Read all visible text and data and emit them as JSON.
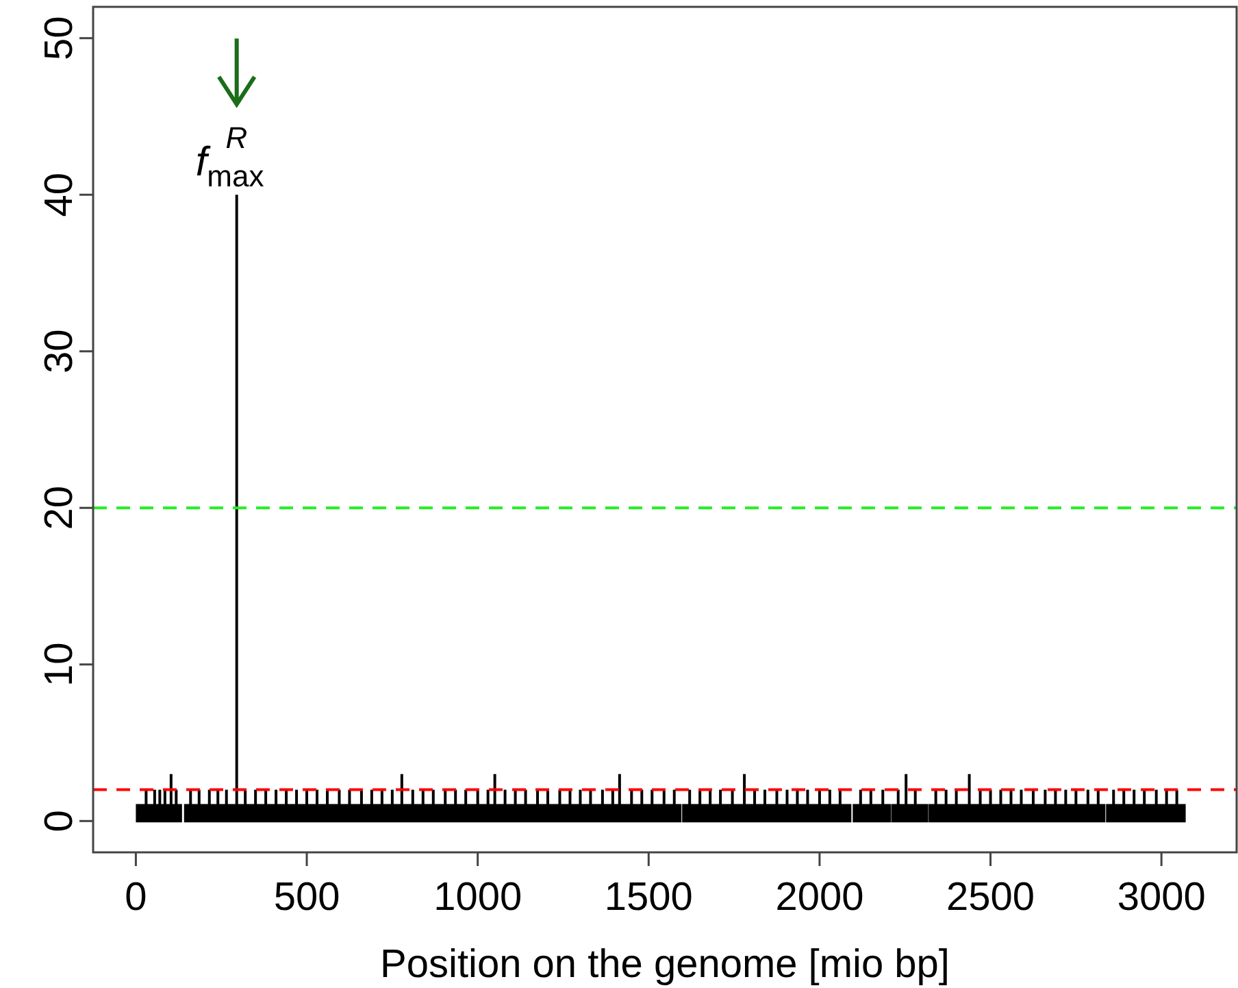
{
  "chart_data": {
    "type": "bar",
    "xlabel": "Position on the genome [mio bp]",
    "xlim": [
      -125,
      3220
    ],
    "xticks": [
      0,
      500,
      1000,
      1500,
      2000,
      2500,
      3000
    ],
    "ylim": [
      -2,
      52
    ],
    "yticks": [
      0,
      10,
      20,
      30,
      40,
      50
    ],
    "grid": false,
    "series": [
      {
        "type": "area",
        "color": "#000000",
        "x": [
          4,
          131,
          null,
          145,
          1592,
          null,
          1602,
          2089,
          null,
          2101,
          2205,
          null,
          2214,
          2314,
          null,
          2323,
          2832,
          null,
          2842,
          3067
        ],
        "values": [
          1,
          1,
          null,
          1,
          1,
          null,
          1,
          1,
          null,
          1,
          1,
          null,
          1,
          1,
          null,
          1,
          1,
          null,
          1,
          1
        ]
      },
      {
        "color": "#000000",
        "x": [
          30,
          55,
          70,
          85,
          103,
          118,
          160,
          185,
          215,
          240,
          265,
          295,
          320,
          350,
          380,
          410,
          440,
          470,
          500,
          530,
          560,
          595,
          625,
          660,
          690,
          720,
          750,
          778,
          810,
          840,
          870,
          905,
          935,
          965,
          1000,
          1030,
          1050,
          1080,
          1110,
          1140,
          1175,
          1205,
          1240,
          1270,
          1300,
          1330,
          1365,
          1395,
          1415,
          1450,
          1480,
          1510,
          1545,
          1575,
          1620,
          1650,
          1680,
          1710,
          1745,
          1780,
          1810,
          1840,
          1875,
          1905,
          1935,
          1965,
          2000,
          2030,
          2060,
          2120,
          2150,
          2185,
          2230,
          2253,
          2280,
          2340,
          2370,
          2400,
          2438,
          2470,
          2500,
          2530,
          2560,
          2590,
          2625,
          2660,
          2690,
          2720,
          2750,
          2785,
          2815,
          2860,
          2890,
          2920,
          2950,
          2985,
          3015,
          3045
        ],
        "values": [
          2,
          2,
          2,
          2,
          3,
          2,
          2,
          2,
          2,
          2,
          2,
          40,
          2,
          2,
          2,
          2,
          2,
          2,
          2,
          2,
          2,
          2,
          2,
          2,
          2,
          2,
          2,
          3,
          2,
          2,
          2,
          2,
          2,
          2,
          2,
          2,
          3,
          2,
          2,
          2,
          2,
          2,
          2,
          2,
          2,
          2,
          2,
          2,
          3,
          2,
          2,
          2,
          2,
          2,
          2,
          2,
          2,
          2,
          2,
          3,
          2,
          2,
          2,
          2,
          2,
          2,
          2,
          2,
          2,
          2,
          2,
          2,
          2,
          3,
          2,
          2,
          2,
          2,
          3,
          2,
          2,
          2,
          2,
          2,
          2,
          2,
          2,
          2,
          2,
          2,
          2,
          2,
          2,
          2,
          2,
          2,
          2,
          2
        ]
      }
    ],
    "ref_lines": [
      {
        "axis": "y",
        "value": 20,
        "color": "#22ee22",
        "line_style": "dashed"
      },
      {
        "axis": "y",
        "value": 2,
        "color": "#ff0000",
        "line_style": "dashed"
      }
    ],
    "annotations": [
      {
        "text": "f$_{max}$$^{R}$",
        "x": 295,
        "y": 40
      }
    ]
  }
}
